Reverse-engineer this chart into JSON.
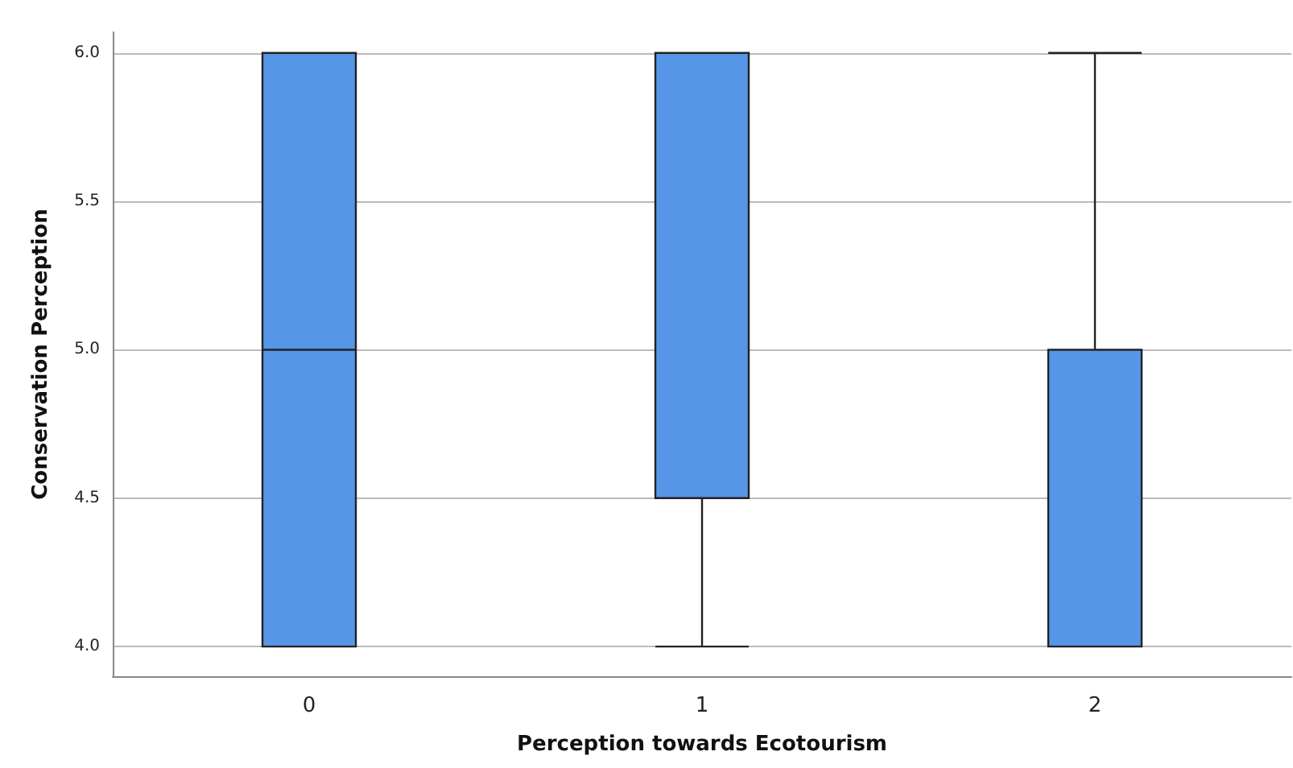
{
  "chart_data": {
    "type": "box",
    "xlabel": "Perception towards Ecotourism",
    "ylabel": "Conservation Perception",
    "categories": [
      "0",
      "1",
      "2"
    ],
    "color": "#5596e6",
    "boxes": [
      {
        "low": 4,
        "q1": 4,
        "median": 5,
        "q3": 6,
        "high": 6
      },
      {
        "low": 4,
        "q1": 4.5,
        "median": 6,
        "q3": 6,
        "high": 6
      },
      {
        "low": 4,
        "q1": 4,
        "median": 4,
        "q3": 5,
        "high": 6
      }
    ],
    "ylim": [
      3.9,
      6.07
    ],
    "yticks": [
      {
        "value": 4,
        "label": "4.0"
      },
      {
        "value": 4.5,
        "label": "4.5"
      },
      {
        "value": 5,
        "label": "5.0"
      },
      {
        "value": 5.5,
        "label": "5.5"
      },
      {
        "value": 6,
        "label": "6.0"
      }
    ],
    "grid": "y"
  }
}
